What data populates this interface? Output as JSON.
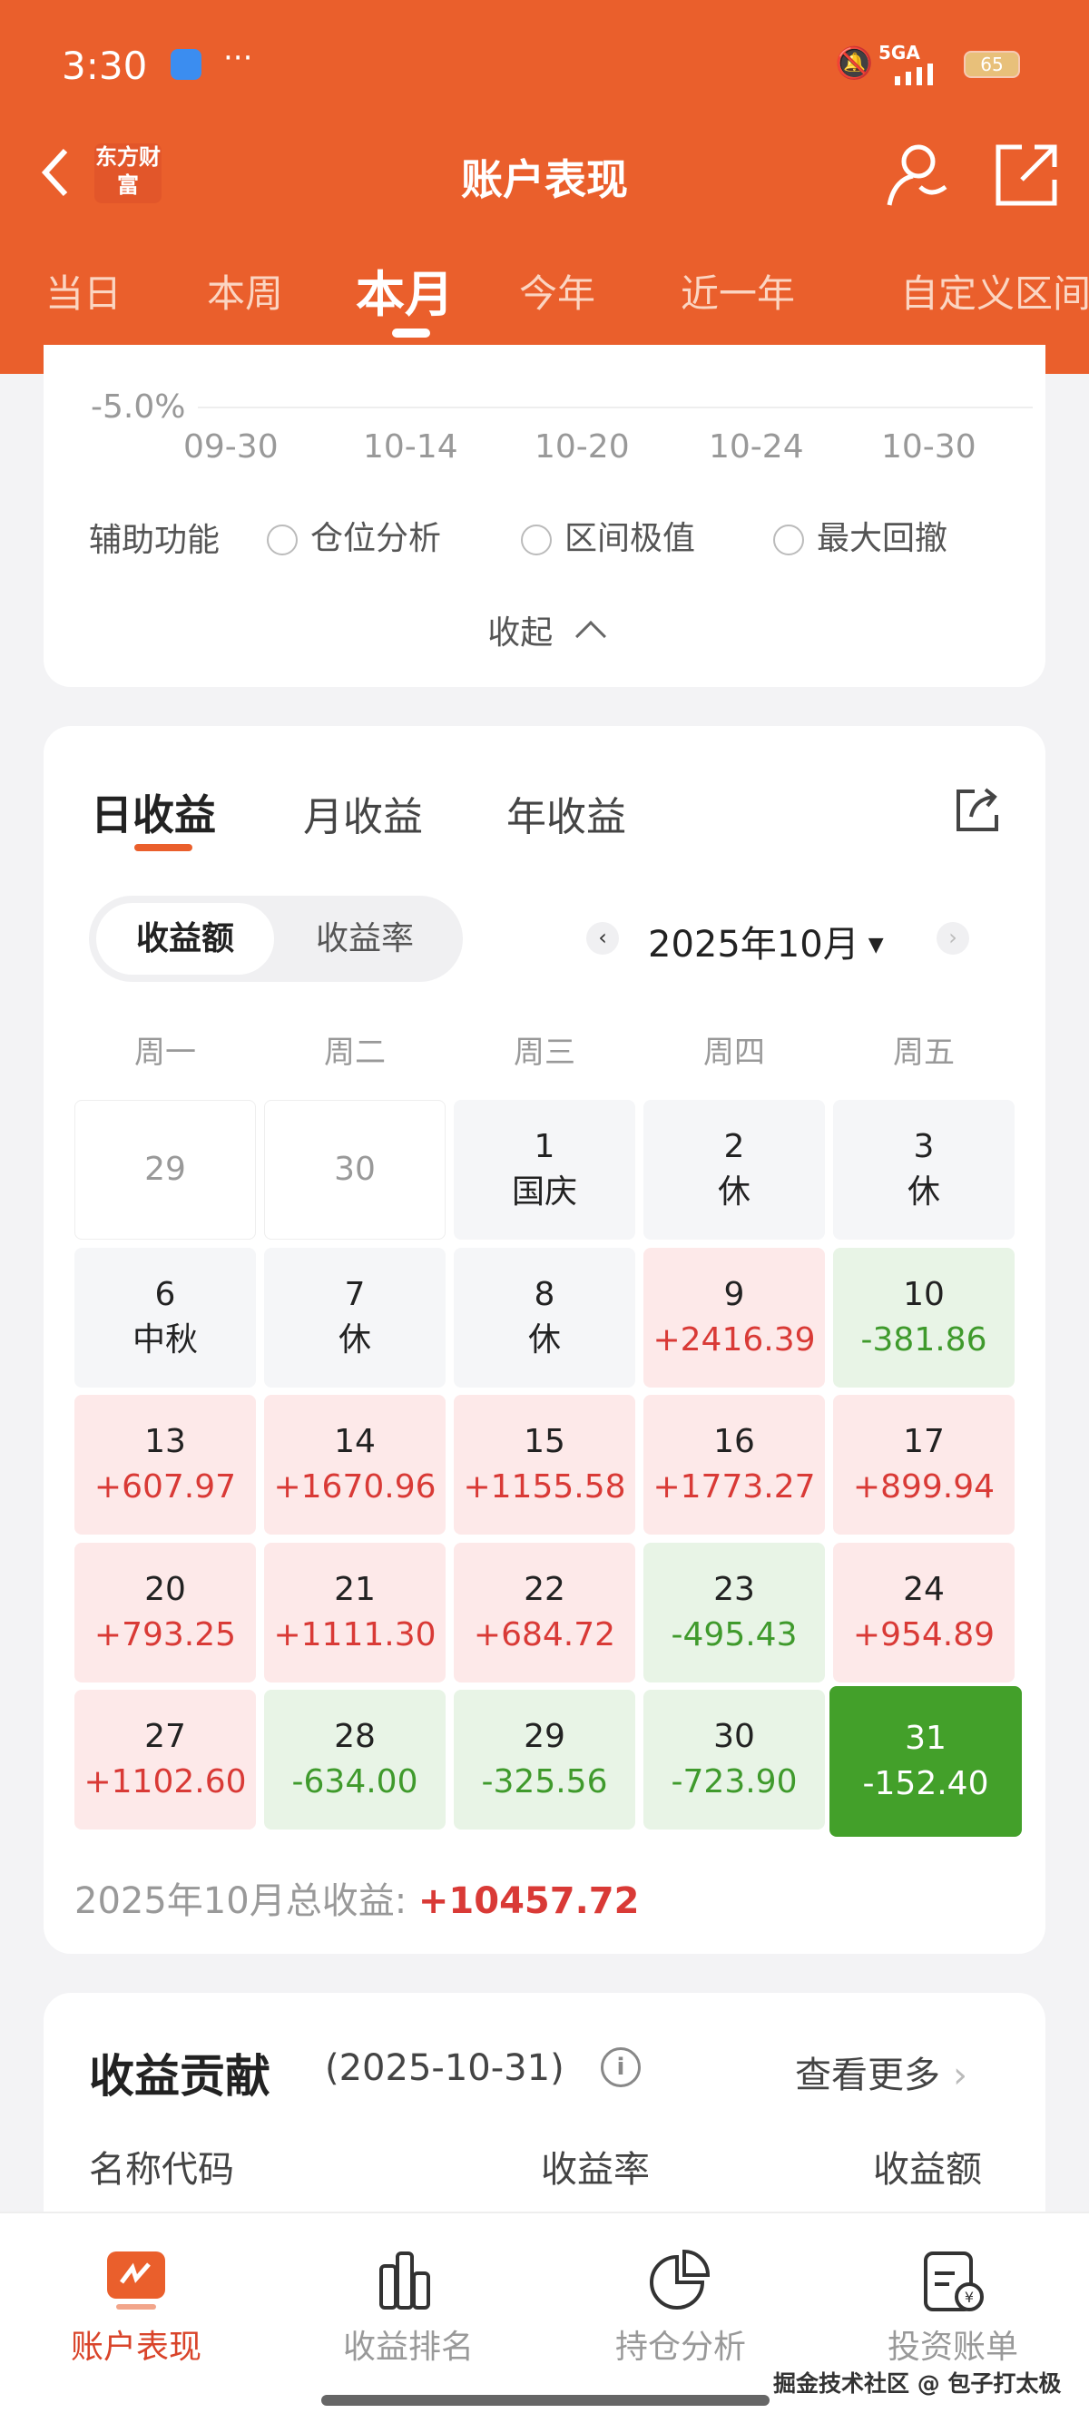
{
  "status_bar": {
    "time": "3:30",
    "dots": "···",
    "network": "5GA",
    "battery": "65"
  },
  "header": {
    "title": "账户表现",
    "logo": "东方财富"
  },
  "period_tabs": [
    {
      "label": "当日"
    },
    {
      "label": "本周"
    },
    {
      "label": "本月",
      "active": true
    },
    {
      "label": "今年"
    },
    {
      "label": "近一年"
    },
    {
      "label": "自定义区间"
    }
  ],
  "chart_section": {
    "y_tick": "-5.0%",
    "x_ticks": [
      "09-30",
      "10-14",
      "10-20",
      "10-24",
      "10-30"
    ],
    "aux_label": "辅助功能",
    "aux_options": [
      "仓位分析",
      "区间极值",
      "最大回撤"
    ],
    "collapse": "收起"
  },
  "profit": {
    "tabs": [
      "日收益",
      "月收益",
      "年收益"
    ],
    "toggle": [
      "收益额",
      "收益率"
    ],
    "month": "2025年10月",
    "weekdays": [
      "周一",
      "周二",
      "周三",
      "周四",
      "周五"
    ],
    "days": [
      {
        "d": "29",
        "t": "out"
      },
      {
        "d": "30",
        "t": "out"
      },
      {
        "d": "1",
        "v": "国庆",
        "t": "hol"
      },
      {
        "d": "2",
        "v": "休",
        "t": "hol"
      },
      {
        "d": "3",
        "v": "休",
        "t": "hol"
      },
      {
        "d": "6",
        "v": "中秋",
        "t": "hol"
      },
      {
        "d": "7",
        "v": "休",
        "t": "hol"
      },
      {
        "d": "8",
        "v": "休",
        "t": "hol"
      },
      {
        "d": "9",
        "v": "+2416.39",
        "t": "up"
      },
      {
        "d": "10",
        "v": "-381.86",
        "t": "down"
      },
      {
        "d": "13",
        "v": "+607.97",
        "t": "up"
      },
      {
        "d": "14",
        "v": "+1670.96",
        "t": "up"
      },
      {
        "d": "15",
        "v": "+1155.58",
        "t": "up"
      },
      {
        "d": "16",
        "v": "+1773.27",
        "t": "up"
      },
      {
        "d": "17",
        "v": "+899.94",
        "t": "up"
      },
      {
        "d": "20",
        "v": "+793.25",
        "t": "up"
      },
      {
        "d": "21",
        "v": "+1111.30",
        "t": "up"
      },
      {
        "d": "22",
        "v": "+684.72",
        "t": "up"
      },
      {
        "d": "23",
        "v": "-495.43",
        "t": "down"
      },
      {
        "d": "24",
        "v": "+954.89",
        "t": "up"
      },
      {
        "d": "27",
        "v": "+1102.60",
        "t": "up"
      },
      {
        "d": "28",
        "v": "-634.00",
        "t": "down"
      },
      {
        "d": "29",
        "v": "-325.56",
        "t": "down"
      },
      {
        "d": "30",
        "v": "-723.90",
        "t": "down"
      },
      {
        "d": "31",
        "v": "-152.40",
        "t": "sel"
      }
    ],
    "total_label": "2025年10月总收益:",
    "total_value": "+10457.72"
  },
  "contribution": {
    "title": "收益贡献",
    "date": "(2025-10-31)",
    "more": "查看更多",
    "columns": [
      "名称代码",
      "收益率",
      "收益额"
    ]
  },
  "bottom_nav": [
    {
      "label": "账户表现",
      "active": true
    },
    {
      "label": "收益排名"
    },
    {
      "label": "持仓分析"
    },
    {
      "label": "投资账单"
    }
  ],
  "watermark": "掘金技术社区 @ 包子打太极",
  "colors": {
    "brand": "#ea5f2c",
    "up": "#d93a36",
    "down": "#3f9a2c"
  }
}
